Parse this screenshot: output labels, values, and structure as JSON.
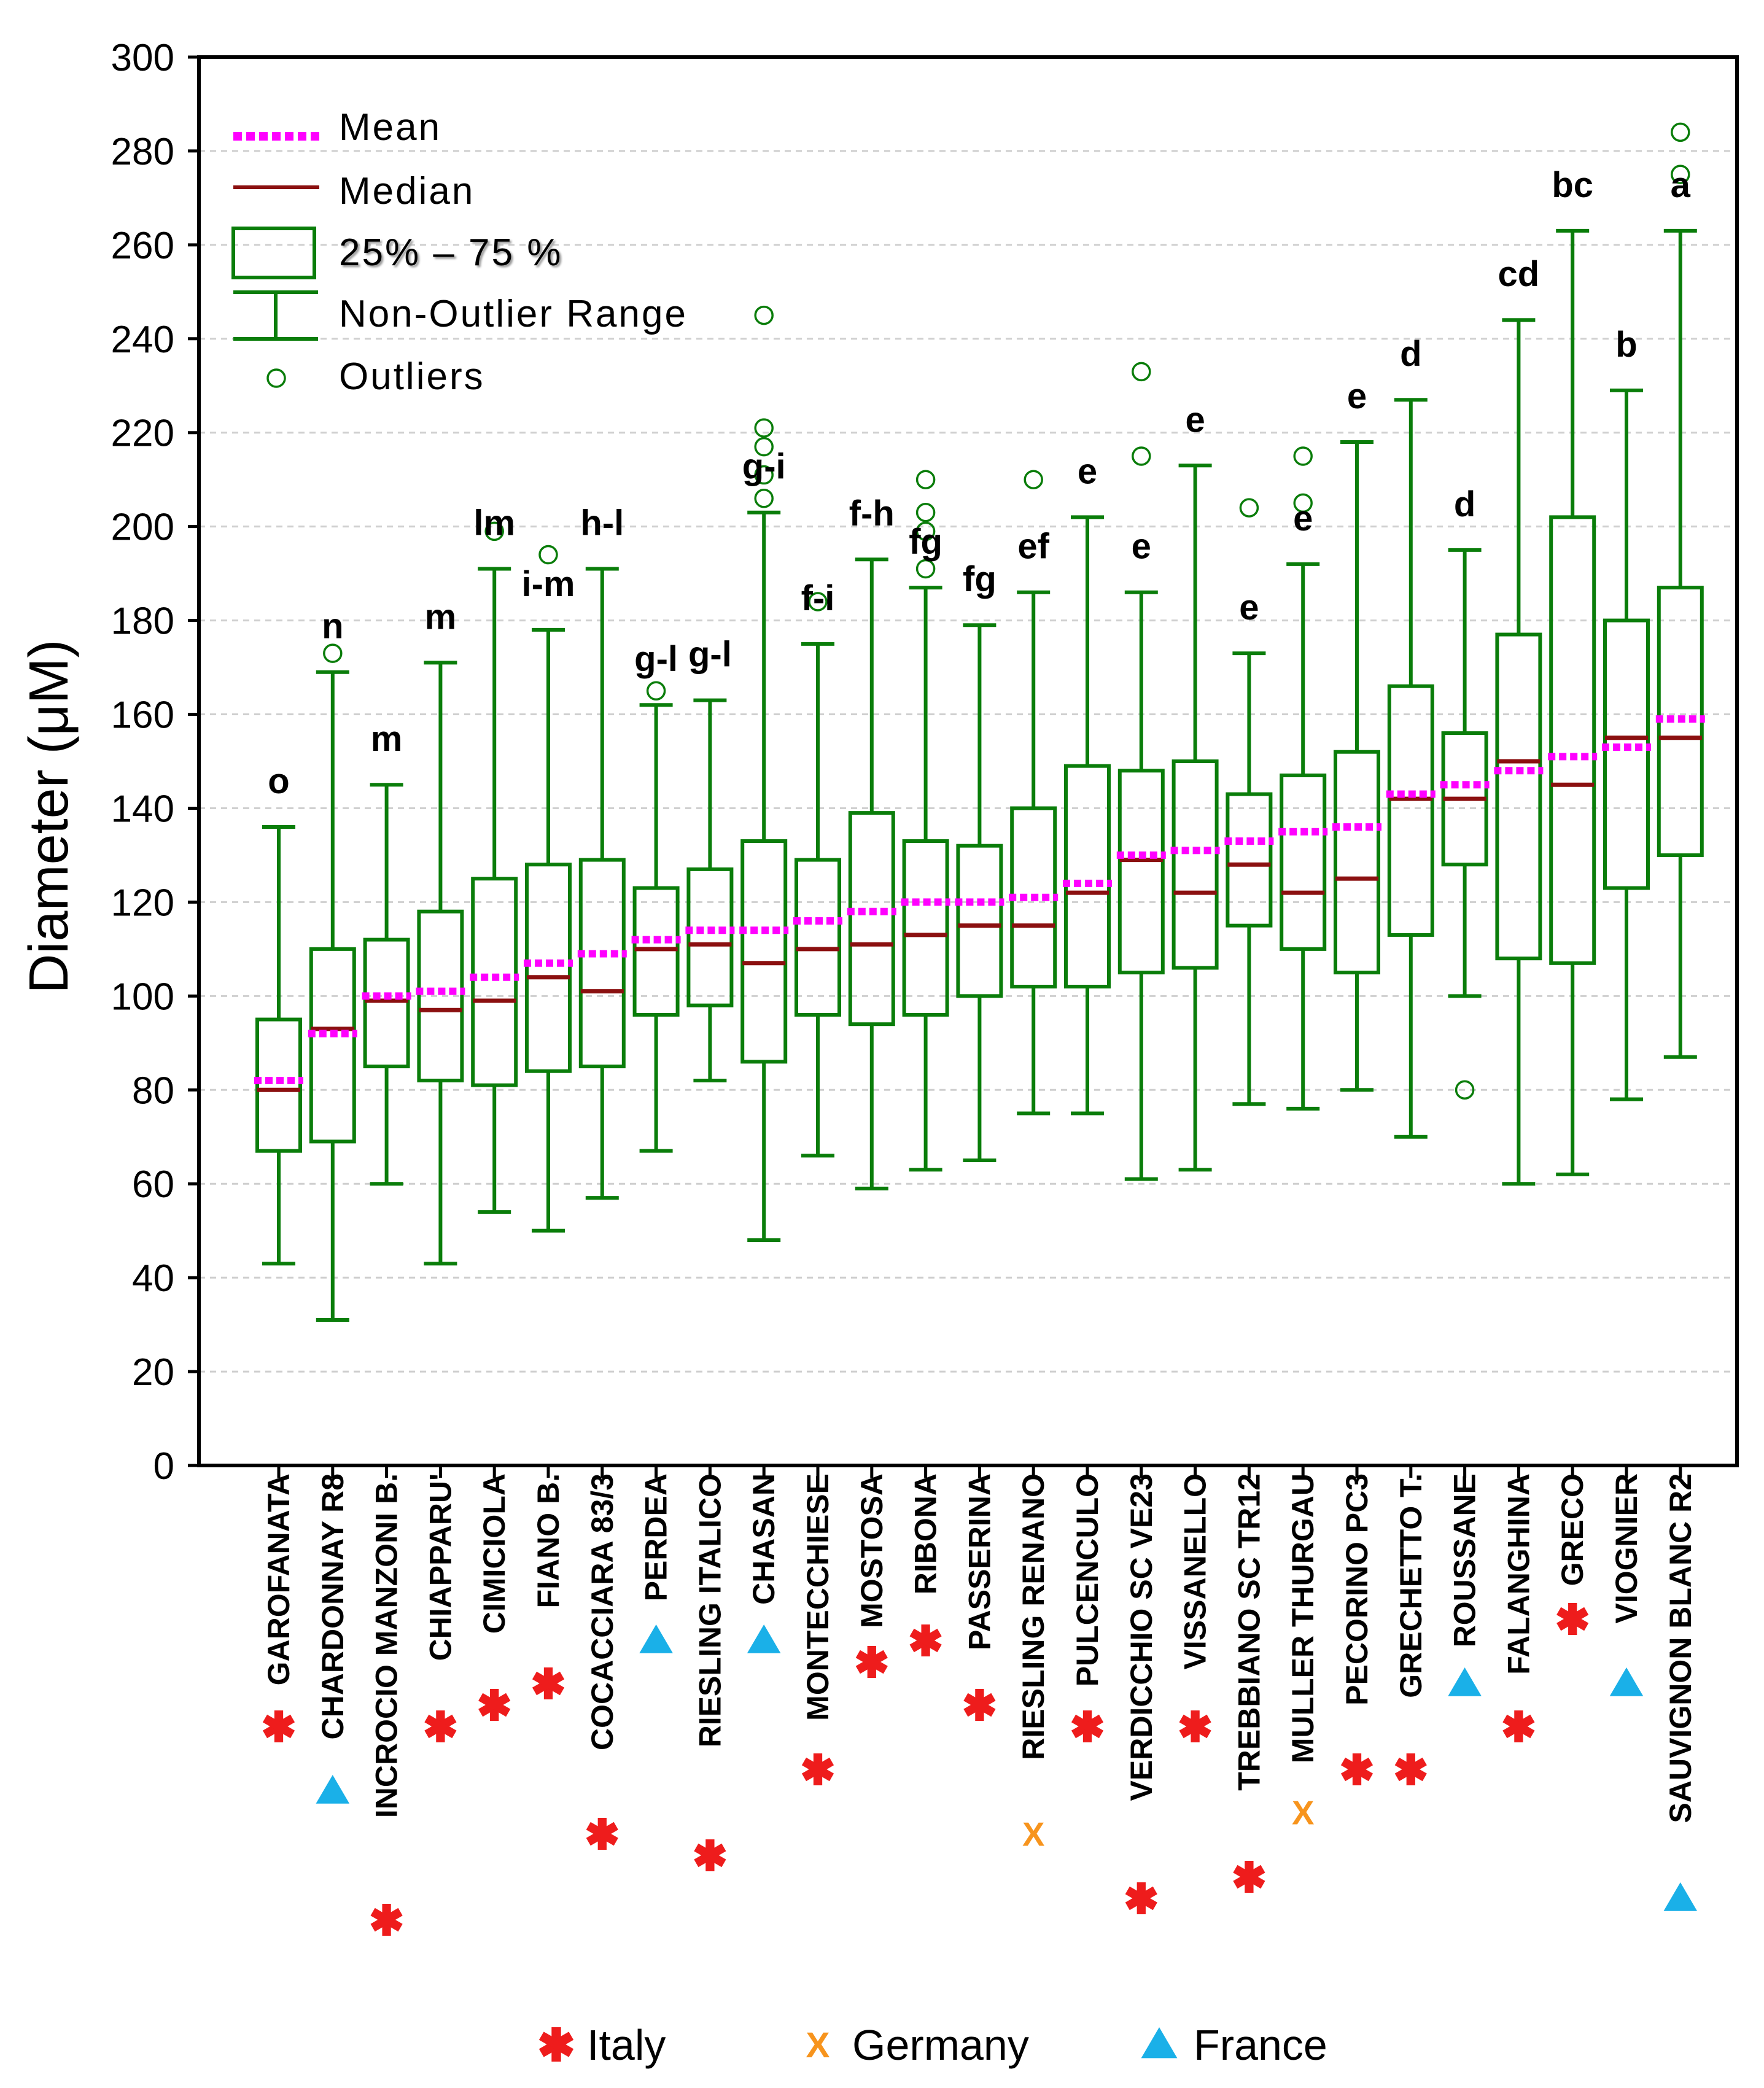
{
  "chart_data": {
    "type": "box",
    "ylabel": "Diameter  (μM)",
    "ylim": [
      0,
      300
    ],
    "yticks": [
      0,
      20,
      40,
      60,
      80,
      100,
      120,
      140,
      160,
      180,
      200,
      220,
      240,
      260,
      280,
      300
    ],
    "grid": true,
    "legend": {
      "position": "top-left",
      "entries": [
        "Mean",
        "Median",
        "25% – 75 %",
        "Non-Outlier Range",
        "Outliers"
      ]
    },
    "country_legend": {
      "position": "bottom",
      "entries": [
        {
          "marker": "asterisk",
          "label": "Italy"
        },
        {
          "marker": "x",
          "label": "Germany"
        },
        {
          "marker": "triangle",
          "label": "France"
        }
      ]
    },
    "colors": {
      "box": "#0a7d0a",
      "median": "#8b1010",
      "mean": "#ff00ff",
      "italy": "#ee1c1c",
      "germany": "#f7941d",
      "france": "#1ab0e8"
    },
    "marker_symbols": {
      "asterisk": "*",
      "x": "X"
    },
    "series": [
      {
        "name": "GAROFANATA",
        "country": "asterisk",
        "whisker_low": 43,
        "q1": 67,
        "median": 80,
        "mean": 82,
        "q3": 95,
        "whisker_high": 136,
        "outliers": [],
        "letter": "o"
      },
      {
        "name": "CHARDONNAY R8",
        "country": "triangle",
        "whisker_low": 31,
        "q1": 69,
        "median": 93,
        "mean": 92,
        "q3": 110,
        "whisker_high": 169,
        "outliers": [
          173
        ],
        "letter": "n"
      },
      {
        "name": "INCROCIO MANZONI B.",
        "country": "asterisk",
        "whisker_low": 60,
        "q1": 85,
        "median": 99,
        "mean": 100,
        "q3": 112,
        "whisker_high": 145,
        "outliers": [],
        "letter": "m"
      },
      {
        "name": "CHIAPPARU'",
        "country": "asterisk",
        "whisker_low": 43,
        "q1": 82,
        "median": 97,
        "mean": 101,
        "q3": 118,
        "whisker_high": 171,
        "outliers": [],
        "letter": "m"
      },
      {
        "name": "CIMICIOLA",
        "country": "asterisk",
        "whisker_low": 54,
        "q1": 81,
        "median": 99,
        "mean": 104,
        "q3": 125,
        "whisker_high": 191,
        "outliers": [
          199
        ],
        "letter": "lm"
      },
      {
        "name": "FIANO B.",
        "country": "asterisk",
        "whisker_low": 50,
        "q1": 84,
        "median": 104,
        "mean": 107,
        "q3": 128,
        "whisker_high": 178,
        "outliers": [
          194
        ],
        "letter": "i-m"
      },
      {
        "name": "COCACCIARA 83/3",
        "country": "asterisk",
        "whisker_low": 57,
        "q1": 85,
        "median": 101,
        "mean": 109,
        "q3": 129,
        "whisker_high": 191,
        "outliers": [],
        "letter": "h-l"
      },
      {
        "name": "PERDEA",
        "country": "triangle",
        "whisker_low": 67,
        "q1": 96,
        "median": 110,
        "mean": 112,
        "q3": 123,
        "whisker_high": 162,
        "outliers": [
          165
        ],
        "letter": "g-l"
      },
      {
        "name": "RIESLING ITALICO",
        "country": "asterisk",
        "whisker_low": 82,
        "q1": 98,
        "median": 111,
        "mean": 114,
        "q3": 127,
        "whisker_high": 163,
        "outliers": [],
        "letter": "g-l"
      },
      {
        "name": "CHASAN",
        "country": "triangle",
        "whisker_low": 48,
        "q1": 86,
        "median": 107,
        "mean": 114,
        "q3": 133,
        "whisker_high": 203,
        "outliers": [
          206,
          211,
          217,
          221,
          245
        ],
        "letter": "g-i"
      },
      {
        "name": "MONTECCHIESE",
        "country": "asterisk",
        "whisker_low": 66,
        "q1": 96,
        "median": 110,
        "mean": 116,
        "q3": 129,
        "whisker_high": 175,
        "outliers": [
          184
        ],
        "letter": "f-i"
      },
      {
        "name": "MOSTOSA",
        "country": "asterisk",
        "whisker_low": 59,
        "q1": 94,
        "median": 111,
        "mean": 118,
        "q3": 139,
        "whisker_high": 193,
        "outliers": [],
        "letter": "f-h"
      },
      {
        "name": "RIBONA",
        "country": "asterisk",
        "whisker_low": 63,
        "q1": 96,
        "median": 113,
        "mean": 120,
        "q3": 133,
        "whisker_high": 187,
        "outliers": [
          191,
          199,
          203,
          210
        ],
        "letter": "fg"
      },
      {
        "name": "PASSERINA",
        "country": "asterisk",
        "whisker_low": 65,
        "q1": 100,
        "median": 115,
        "mean": 120,
        "q3": 132,
        "whisker_high": 179,
        "outliers": [],
        "letter": "fg"
      },
      {
        "name": "RIESLING RENANO",
        "country": "x",
        "whisker_low": 75,
        "q1": 102,
        "median": 115,
        "mean": 121,
        "q3": 140,
        "whisker_high": 186,
        "outliers": [
          210
        ],
        "letter": "ef"
      },
      {
        "name": "PULCENCULO",
        "country": "asterisk",
        "whisker_low": 75,
        "q1": 102,
        "median": 122,
        "mean": 124,
        "q3": 149,
        "whisker_high": 202,
        "outliers": [],
        "letter": "e"
      },
      {
        "name": "VERDICCHIO SC VE23",
        "country": "asterisk",
        "whisker_low": 61,
        "q1": 105,
        "median": 129,
        "mean": 130,
        "q3": 148,
        "whisker_high": 186,
        "outliers": [
          215,
          233
        ],
        "letter": "e"
      },
      {
        "name": "VISSANELLO",
        "country": "asterisk",
        "whisker_low": 63,
        "q1": 106,
        "median": 122,
        "mean": 131,
        "q3": 150,
        "whisker_high": 213,
        "outliers": [],
        "letter": "e"
      },
      {
        "name": "TREBBIANO SC TR12",
        "country": "asterisk",
        "whisker_low": 77,
        "q1": 115,
        "median": 128,
        "mean": 133,
        "q3": 143,
        "whisker_high": 173,
        "outliers": [
          204
        ],
        "letter": "e"
      },
      {
        "name": "MULLER THURGAU",
        "country": "x",
        "whisker_low": 76,
        "q1": 110,
        "median": 122,
        "mean": 135,
        "q3": 147,
        "whisker_high": 192,
        "outliers": [
          205,
          215
        ],
        "letter": "e"
      },
      {
        "name": "PECORINO PC3",
        "country": "asterisk",
        "whisker_low": 80,
        "q1": 105,
        "median": 125,
        "mean": 136,
        "q3": 152,
        "whisker_high": 218,
        "outliers": [],
        "letter": "e"
      },
      {
        "name": "GRECHETTO T.",
        "country": "asterisk",
        "whisker_low": 70,
        "q1": 113,
        "median": 142,
        "mean": 143,
        "q3": 166,
        "whisker_high": 227,
        "outliers": [],
        "letter": "d"
      },
      {
        "name": "ROUSSANE",
        "country": "triangle",
        "whisker_low": 100,
        "q1": 128,
        "median": 142,
        "mean": 145,
        "q3": 156,
        "whisker_high": 195,
        "outliers": [
          80
        ],
        "letter": "d"
      },
      {
        "name": "FALANGHINA",
        "country": "asterisk",
        "whisker_low": 60,
        "q1": 108,
        "median": 150,
        "mean": 148,
        "q3": 177,
        "whisker_high": 244,
        "outliers": [],
        "letter": "cd"
      },
      {
        "name": "GRECO",
        "country": "asterisk",
        "whisker_low": 62,
        "q1": 107,
        "median": 145,
        "mean": 151,
        "q3": 202,
        "whisker_high": 263,
        "outliers": [],
        "letter": "bc"
      },
      {
        "name": "VIOGNIER",
        "country": "triangle",
        "whisker_low": 78,
        "q1": 123,
        "median": 155,
        "mean": 153,
        "q3": 180,
        "whisker_high": 229,
        "outliers": [],
        "letter": "b"
      },
      {
        "name": "SAUVIGNON BLANC R2",
        "country": "triangle",
        "whisker_low": 87,
        "q1": 130,
        "median": 155,
        "mean": 159,
        "q3": 187,
        "whisker_high": 263,
        "outliers": [
          275,
          284
        ],
        "letter": "a"
      }
    ]
  }
}
